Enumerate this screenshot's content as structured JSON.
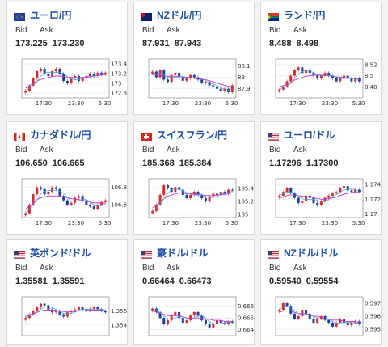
{
  "cards": [
    {
      "pair": "ユーロ/円",
      "bid_label": "Bid",
      "ask_label": "Ask",
      "bid": "173.225",
      "ask": "173.230",
      "flag_icon": "eu-flag-icon",
      "chart_data": {
        "type": "candlestick",
        "x_ticks": [
          "17:30",
          "23:30",
          "5:30"
        ],
        "y_ticks": [
          "173.4",
          "173.2",
          "173",
          "172.8"
        ],
        "ylim": [
          172.7,
          173.5
        ],
        "closes": [
          172.85,
          172.95,
          173.1,
          173.25,
          173.3,
          173.2,
          173.15,
          173.25,
          173.3,
          173.2,
          173.05,
          173.0,
          173.1,
          173.15,
          173.05,
          173.1,
          173.15,
          173.2,
          173.15,
          173.22,
          173.18,
          173.22
        ],
        "ma": [
          172.9,
          172.95,
          173.0,
          173.05,
          173.08,
          173.1,
          173.12,
          173.14,
          173.15,
          173.15,
          173.14,
          173.13,
          173.12,
          173.12,
          173.12,
          173.12,
          173.13,
          173.14,
          173.15,
          173.16,
          173.17,
          173.18
        ]
      }
    },
    {
      "pair": "NZドル/円",
      "bid_label": "Bid",
      "ask_label": "Ask",
      "bid": "87.931",
      "ask": "87.943",
      "flag_icon": "nz-flag-icon",
      "chart_data": {
        "type": "candlestick",
        "x_ticks": [
          "17:30",
          "23:30",
          "5:30"
        ],
        "y_ticks": [
          "88.1",
          "88",
          "87.9"
        ],
        "ylim": [
          87.82,
          88.16
        ],
        "closes": [
          88.05,
          88.0,
          88.06,
          87.98,
          87.96,
          88.02,
          88.04,
          88.0,
          87.97,
          87.99,
          88.02,
          88.0,
          87.98,
          87.95,
          87.96,
          87.93,
          87.92,
          87.9,
          87.88,
          87.9,
          87.87,
          87.93
        ],
        "ma": [
          88.02,
          88.02,
          88.02,
          88.01,
          88.01,
          88.01,
          88.01,
          88.01,
          88.0,
          88.0,
          88.0,
          87.99,
          87.99,
          87.98,
          87.98,
          87.97,
          87.96,
          87.95,
          87.94,
          87.93,
          87.92,
          87.92
        ]
      }
    },
    {
      "pair": "ランド/円",
      "bid_label": "Bid",
      "ask_label": "Ask",
      "bid": "8.488",
      "ask": "8.498",
      "flag_icon": "za-flag-icon",
      "chart_data": {
        "type": "candlestick",
        "x_ticks": [
          "17:30",
          "23:30",
          "5:30"
        ],
        "y_ticks": [
          "8.52",
          "8.5",
          "8.48"
        ],
        "ylim": [
          8.46,
          8.53
        ],
        "closes": [
          8.475,
          8.48,
          8.49,
          8.5,
          8.51,
          8.515,
          8.505,
          8.51,
          8.505,
          8.5,
          8.495,
          8.5,
          8.505,
          8.5,
          8.495,
          8.49,
          8.495,
          8.5,
          8.495,
          8.49,
          8.495,
          8.49
        ],
        "ma": [
          8.48,
          8.482,
          8.485,
          8.488,
          8.492,
          8.495,
          8.497,
          8.499,
          8.5,
          8.501,
          8.501,
          8.501,
          8.5,
          8.5,
          8.499,
          8.498,
          8.497,
          8.497,
          8.496,
          8.495,
          8.495,
          8.494
        ]
      }
    },
    {
      "pair": "カナダドル/円",
      "bid_label": "Bid",
      "ask_label": "Ask",
      "bid": "106.650",
      "ask": "106.665",
      "flag_icon": "ca-flag-icon",
      "chart_data": {
        "type": "candlestick",
        "x_ticks": [
          "17:30",
          "23:30",
          "5:30"
        ],
        "y_ticks": [
          "106.8",
          "106.6"
        ],
        "ylim": [
          106.45,
          106.9
        ],
        "closes": [
          106.5,
          106.6,
          106.72,
          106.8,
          106.78,
          106.72,
          106.75,
          106.8,
          106.78,
          106.7,
          106.65,
          106.6,
          106.62,
          106.68,
          106.7,
          106.65,
          106.6,
          106.58,
          106.55,
          106.6,
          106.63,
          106.65
        ],
        "ma": [
          106.55,
          106.58,
          106.62,
          106.66,
          106.68,
          106.69,
          106.7,
          106.7,
          106.7,
          106.7,
          106.69,
          106.68,
          106.67,
          106.66,
          106.66,
          106.65,
          106.64,
          106.63,
          106.62,
          106.62,
          106.62,
          106.62
        ]
      }
    },
    {
      "pair": "スイスフラン/円",
      "bid_label": "Bid",
      "ask_label": "Ask",
      "bid": "185.368",
      "ask": "185.384",
      "flag_icon": "ch-flag-icon",
      "chart_data": {
        "type": "candlestick",
        "x_ticks": [
          "17:30",
          "23:30",
          "5:30"
        ],
        "y_ticks": [
          "185.4",
          "185.2",
          "185"
        ],
        "ylim": [
          184.95,
          185.55
        ],
        "closes": [
          185.05,
          185.15,
          185.3,
          185.45,
          185.4,
          185.35,
          185.42,
          185.38,
          185.3,
          185.25,
          185.3,
          185.35,
          185.3,
          185.25,
          185.2,
          185.28,
          185.32,
          185.3,
          185.35,
          185.32,
          185.38,
          185.37
        ],
        "ma": [
          185.1,
          185.14,
          185.19,
          185.24,
          185.28,
          185.3,
          185.32,
          185.33,
          185.33,
          185.32,
          185.32,
          185.32,
          185.31,
          185.3,
          185.29,
          185.29,
          185.29,
          185.3,
          185.3,
          185.31,
          185.32,
          185.33
        ]
      }
    },
    {
      "pair": "ユーロ/ドル",
      "bid_label": "Bid",
      "ask_label": "Ask",
      "bid": "1.17296",
      "ask": "1.17300",
      "flag_icon": "eu-flag-icon-2",
      "chart_data": {
        "type": "candlestick",
        "x_ticks": [
          "17:30",
          "23:30",
          "5:30"
        ],
        "y_ticks": [
          "1.174",
          "1.172",
          "1.17"
        ],
        "ylim": [
          1.1695,
          1.1748
        ],
        "closes": [
          1.1725,
          1.173,
          1.1735,
          1.1728,
          1.1722,
          1.1715,
          1.1718,
          1.1725,
          1.1722,
          1.1715,
          1.1712,
          1.1718,
          1.1722,
          1.1725,
          1.1728,
          1.173,
          1.1735,
          1.1738,
          1.1732,
          1.173,
          1.1733,
          1.173
        ],
        "ma": [
          1.1722,
          1.1723,
          1.1725,
          1.1726,
          1.1726,
          1.1725,
          1.1724,
          1.1724,
          1.1723,
          1.1722,
          1.1721,
          1.172,
          1.172,
          1.1721,
          1.1722,
          1.1723,
          1.1725,
          1.1727,
          1.1728,
          1.1729,
          1.173,
          1.173
        ]
      }
    },
    {
      "pair": "英ポンド/ドル",
      "bid_label": "Bid",
      "ask_label": "Ask",
      "bid": "1.35581",
      "ask": "1.35591",
      "flag_icon": "gb-flag-icon",
      "chart_data": {
        "type": "candlestick",
        "x_ticks": [],
        "y_ticks": [
          "1.356",
          "1.354"
        ],
        "ylim": [
          1.3525,
          1.358
        ],
        "closes": [
          1.355,
          1.3555,
          1.356,
          1.3565,
          1.357,
          1.3568,
          1.3562,
          1.3558,
          1.356,
          1.3555,
          1.3552,
          1.3558,
          1.356,
          1.3562,
          1.3565,
          1.3562,
          1.356,
          1.3563,
          1.3565,
          1.3562,
          1.356,
          1.3558
        ],
        "ma": [
          1.3552,
          1.3554,
          1.3556,
          1.3558,
          1.356,
          1.3561,
          1.3561,
          1.3561,
          1.3561,
          1.356,
          1.3559,
          1.3559,
          1.3559,
          1.3559,
          1.356,
          1.356,
          1.356,
          1.3561,
          1.3561,
          1.3561,
          1.3561,
          1.356
        ]
      }
    },
    {
      "pair": "豪ドル/ドル",
      "bid_label": "Bid",
      "ask_label": "Ask",
      "bid": "0.66464",
      "ask": "0.66473",
      "flag_icon": "au-flag-icon",
      "chart_data": {
        "type": "candlestick",
        "x_ticks": [],
        "y_ticks": [
          "0.666",
          "0.665",
          "0.664"
        ],
        "ylim": [
          0.6635,
          0.6668
        ],
        "closes": [
          0.6658,
          0.6655,
          0.665,
          0.6645,
          0.6648,
          0.6652,
          0.6655,
          0.665,
          0.6646,
          0.6648,
          0.6652,
          0.6655,
          0.6652,
          0.6648,
          0.6645,
          0.6642,
          0.6645,
          0.6648,
          0.6646,
          0.6645,
          0.6647,
          0.6646
        ],
        "ma": [
          0.6656,
          0.6655,
          0.6654,
          0.6653,
          0.6652,
          0.6652,
          0.6652,
          0.6652,
          0.6651,
          0.665,
          0.665,
          0.665,
          0.665,
          0.665,
          0.6649,
          0.6649,
          0.6648,
          0.6648,
          0.6648,
          0.6647,
          0.6647,
          0.6647
        ]
      }
    },
    {
      "pair": "NZドル/ドル",
      "bid_label": "Bid",
      "ask_label": "Ask",
      "bid": "0.59540",
      "ask": "0.59554",
      "flag_icon": "nz-flag-icon-2",
      "chart_data": {
        "type": "candlestick",
        "x_ticks": [],
        "y_ticks": [
          "0.597",
          "0.596",
          "0.595"
        ],
        "ylim": [
          0.5945,
          0.5975
        ],
        "closes": [
          0.5965,
          0.597,
          0.5968,
          0.5962,
          0.5958,
          0.596,
          0.5965,
          0.5962,
          0.5958,
          0.5955,
          0.5958,
          0.596,
          0.5957,
          0.5955,
          0.5952,
          0.5955,
          0.5958,
          0.5955,
          0.5953,
          0.5955,
          0.5956,
          0.5954
        ],
        "ma": [
          0.5963,
          0.5964,
          0.5964,
          0.5964,
          0.5963,
          0.5962,
          0.5962,
          0.5962,
          0.5961,
          0.596,
          0.596,
          0.5959,
          0.5958,
          0.5958,
          0.5957,
          0.5957,
          0.5957,
          0.5956,
          0.5956,
          0.5956,
          0.5956,
          0.5955
        ]
      }
    }
  ]
}
